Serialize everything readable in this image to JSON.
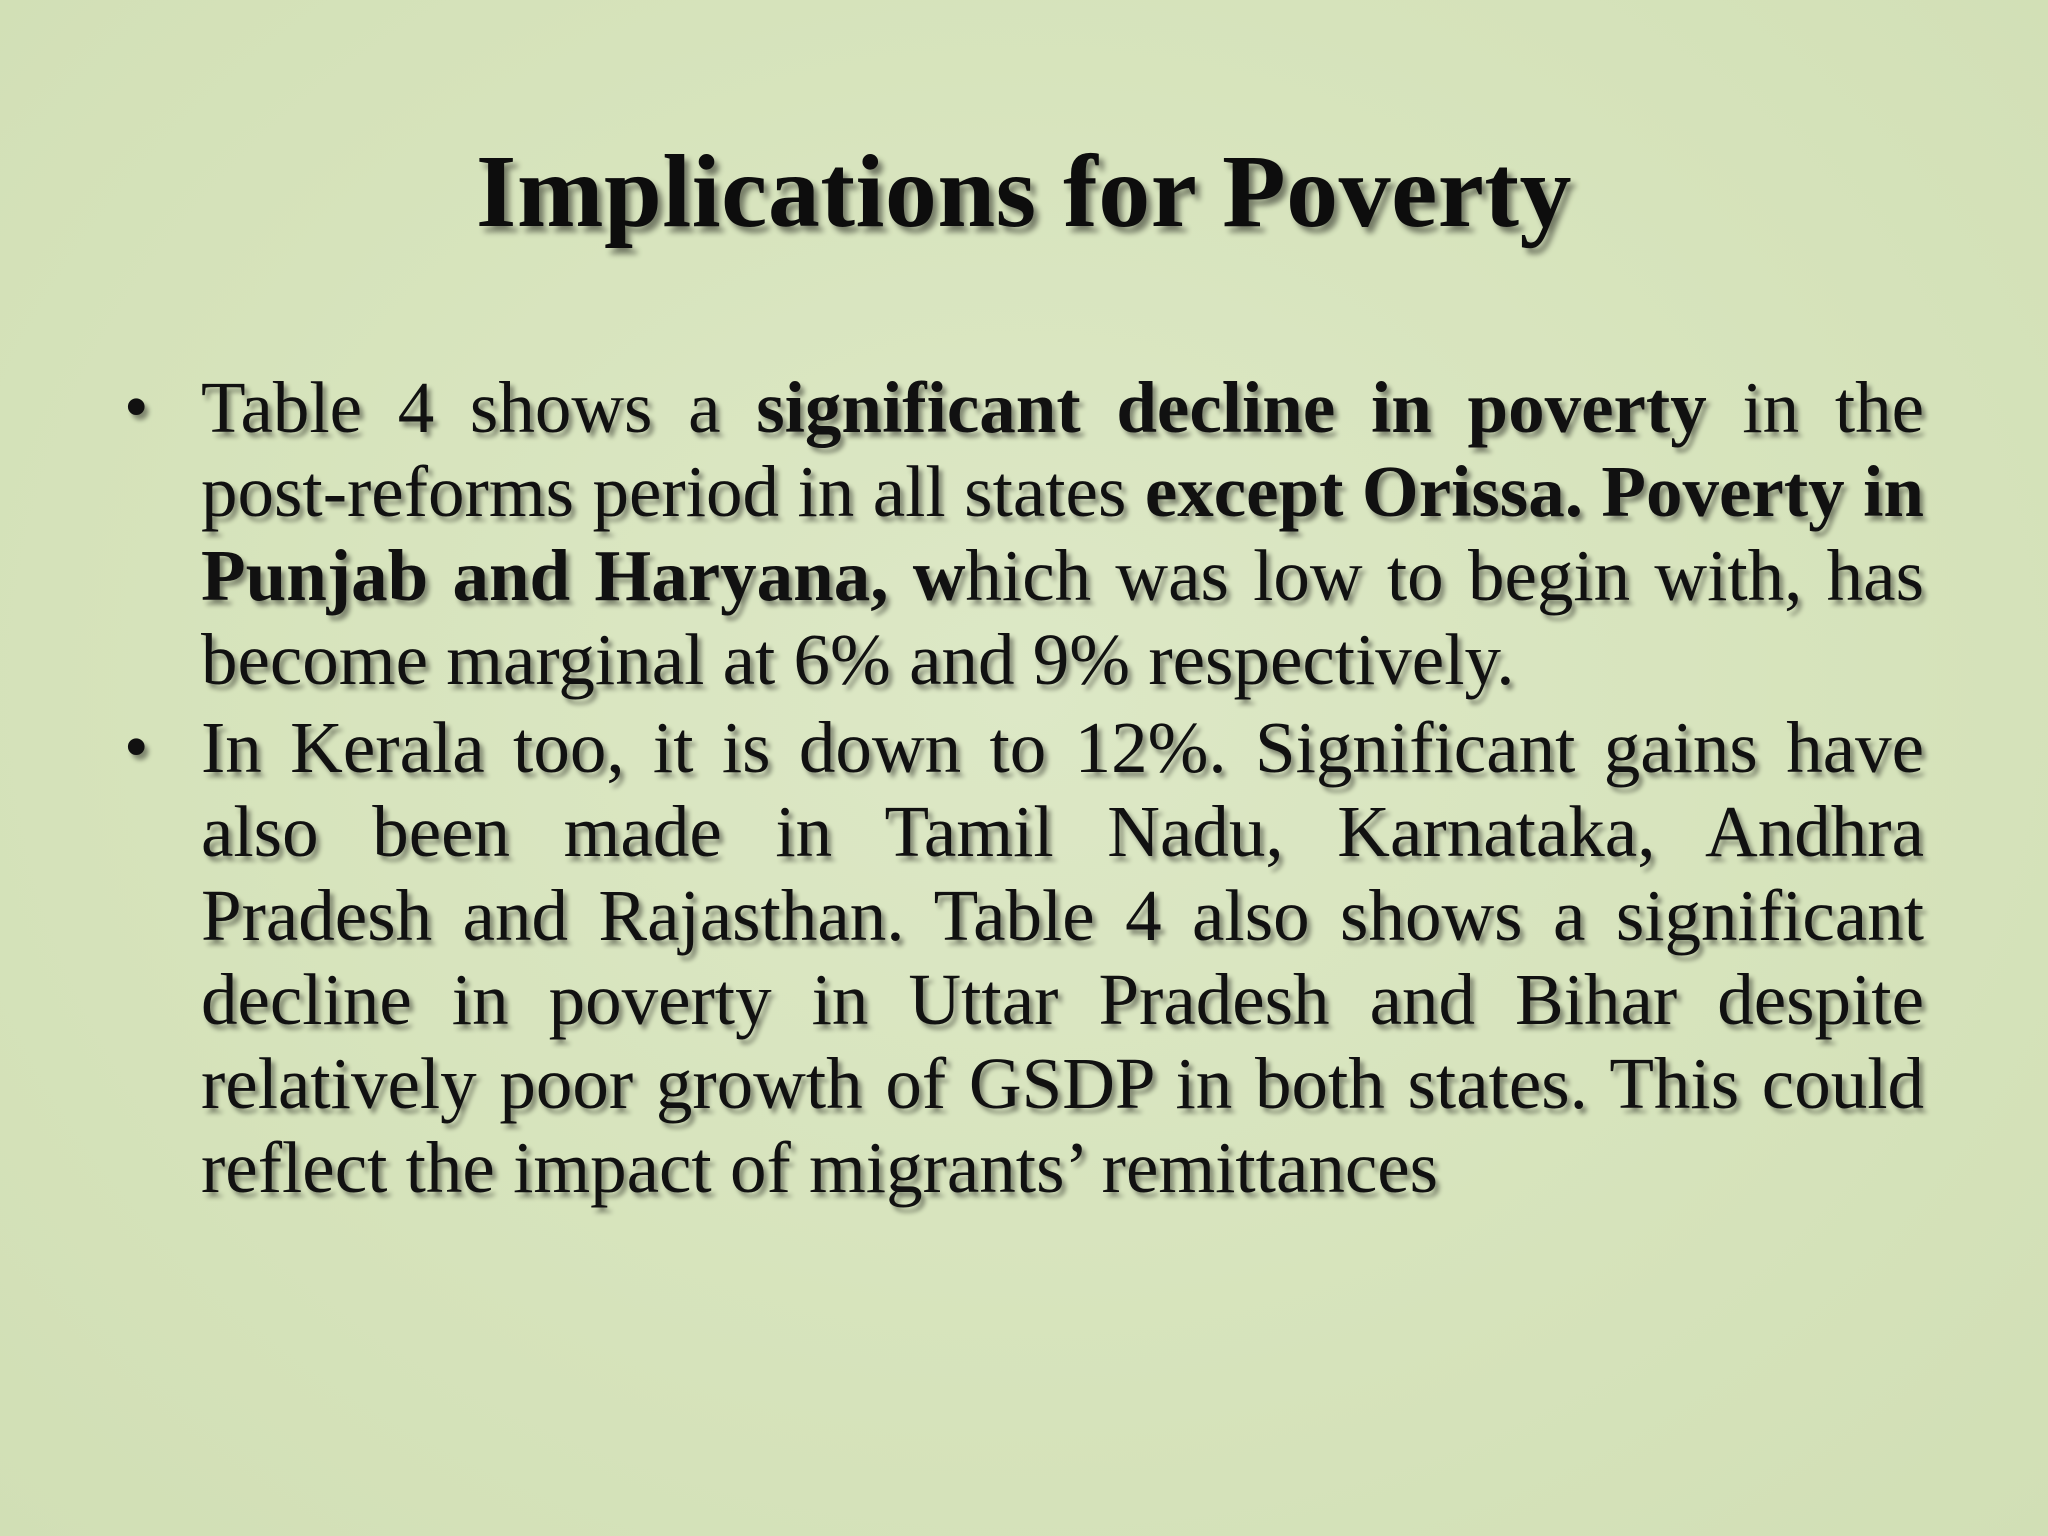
{
  "slide": {
    "title": "Implications for Poverty",
    "bullet_symbol": "•",
    "bullets": [
      {
        "segments": [
          {
            "text": "Table 4 shows a ",
            "bold": false
          },
          {
            "text": "significant decline in poverty",
            "bold": true
          },
          {
            "text": " in the post-reforms period in all states ",
            "bold": false
          },
          {
            "text": "except Orissa. Poverty in Punjab and Haryana, w",
            "bold": true
          },
          {
            "text": "hich was low to begin with, has become marginal at 6% and 9% respectively.",
            "bold": false
          }
        ]
      },
      {
        "segments": [
          {
            "text": "In Kerala too, it is down to 12%. Significant gains have also been made in Tamil Nadu, Karnataka, Andhra Pradesh and Rajasthan. Table 4 also shows a significant decline in poverty in Uttar Pradesh and Bihar despite relatively poor growth of GSDP in both states. This could reflect the impact of migrants’ remittances",
            "bold": false
          }
        ]
      }
    ]
  },
  "colors": {
    "background": "#d7e4bd",
    "text": "#111111"
  }
}
